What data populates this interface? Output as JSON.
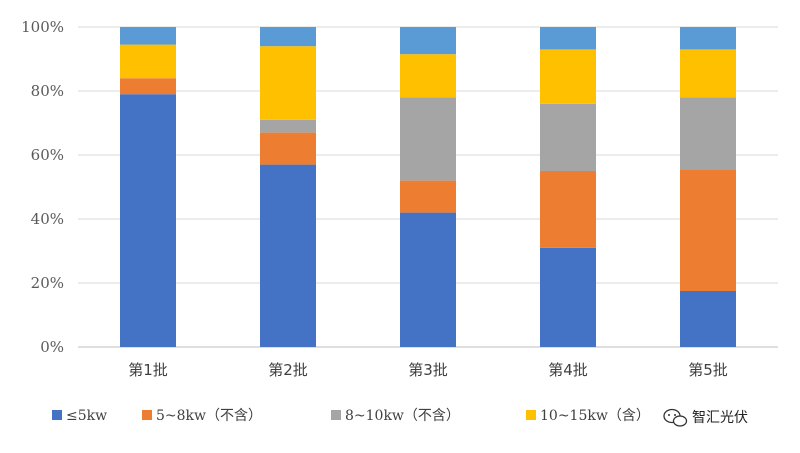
{
  "chart_data": {
    "type": "bar",
    "stacked": true,
    "percent": true,
    "categories": [
      "第1批",
      "第2批",
      "第3批",
      "第4批",
      "第5批"
    ],
    "series": [
      {
        "name": "≤5kw",
        "color": "#4472C4",
        "values": [
          79,
          57,
          42,
          31,
          17.5
        ]
      },
      {
        "name": "5~8kw（不含）",
        "color": "#ED7D31",
        "values": [
          5,
          10,
          10,
          24,
          38
        ]
      },
      {
        "name": "8~10kw（不含）",
        "color": "#A5A5A5",
        "values": [
          0,
          4,
          26,
          21,
          22.5
        ]
      },
      {
        "name": "10~15kw（含）",
        "color": "#FFC000",
        "values": [
          10.5,
          23,
          13.5,
          17,
          15
        ]
      },
      {
        "name": "",
        "color": "#5B9BD5",
        "values": [
          5.5,
          6,
          8.5,
          7,
          7
        ]
      }
    ],
    "ylim": [
      0,
      100
    ],
    "yticks": [
      "0%",
      "20%",
      "40%",
      "60%",
      "80%",
      "100%"
    ],
    "grid": true,
    "legend_position": "bottom",
    "title": "",
    "xlabel": "",
    "ylabel": ""
  },
  "watermark": {
    "text": "智汇光伏"
  }
}
